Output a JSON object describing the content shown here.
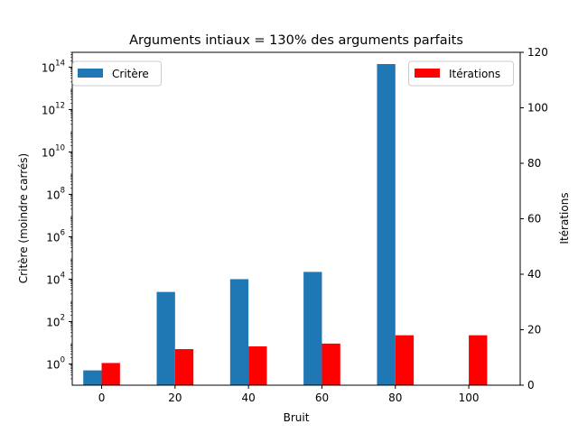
{
  "chart_data": {
    "type": "bar",
    "title": "Arguments intiaux = 130% des arguments parfaits",
    "xlabel": "Bruit",
    "ylabel_left": "Critère (moindre carrés)",
    "ylabel_right": "Itérations",
    "x": [
      0,
      20,
      40,
      60,
      80,
      100
    ],
    "x_ticks": [
      "0",
      "20",
      "40",
      "60",
      "80",
      "100"
    ],
    "xlim": [
      -8,
      114
    ],
    "left_axis": {
      "scale": "log",
      "ylim": [
        0.1,
        500000000000000
      ],
      "ticks": [
        {
          "base": "10",
          "exp": "0"
        },
        {
          "base": "10",
          "exp": "2"
        },
        {
          "base": "10",
          "exp": "4"
        },
        {
          "base": "10",
          "exp": "6"
        },
        {
          "base": "10",
          "exp": "8"
        },
        {
          "base": "10",
          "exp": "10"
        },
        {
          "base": "10",
          "exp": "12"
        },
        {
          "base": "10",
          "exp": "14"
        }
      ],
      "tick_values": [
        1,
        100,
        10000,
        1000000,
        100000000,
        10000000000,
        1000000000000,
        100000000000000
      ]
    },
    "right_axis": {
      "scale": "linear",
      "ylim": [
        0,
        120
      ],
      "ticks": [
        "0",
        "20",
        "40",
        "60",
        "80",
        "100",
        "120"
      ],
      "tick_values": [
        0,
        20,
        40,
        60,
        80,
        100,
        120
      ]
    },
    "series": [
      {
        "name": "Critère",
        "axis": "left",
        "color": "#1f77b4",
        "values": [
          0.5,
          2500,
          10000,
          22000,
          140000000000000,
          null
        ]
      },
      {
        "name": "Itérations",
        "axis": "right",
        "color": "#ff0000",
        "values": [
          8,
          13,
          14,
          15,
          18,
          18
        ]
      }
    ],
    "legend": [
      {
        "name": "Critère",
        "placement": "upper-left",
        "color": "#1f77b4"
      },
      {
        "name": "Itérations",
        "placement": "upper-right",
        "color": "#ff0000"
      }
    ],
    "grid": false
  }
}
